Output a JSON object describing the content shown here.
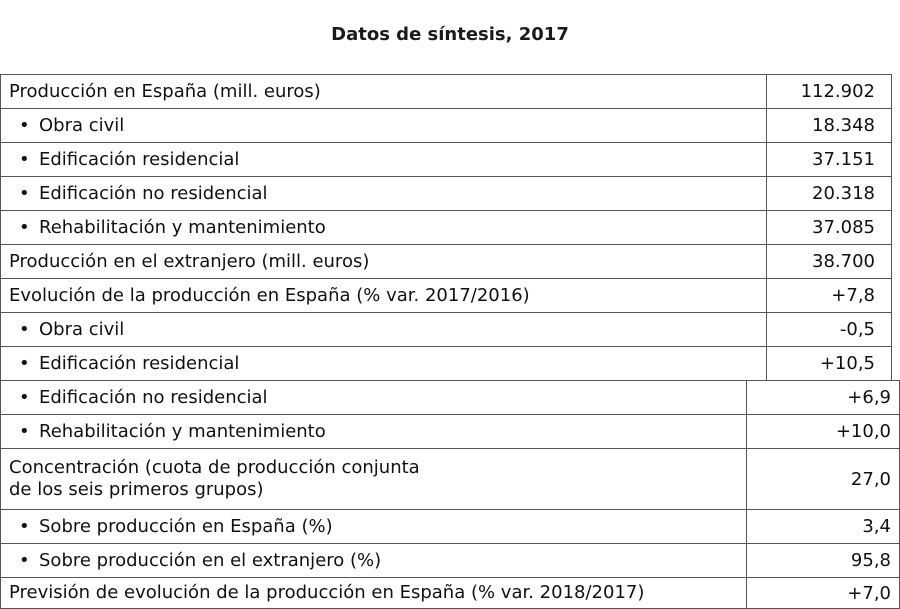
{
  "title": "Datos de síntesis, 2017",
  "rows": [
    {
      "label": "Producción en España (mill. euros)",
      "value": "112.902"
    },
    {
      "label": "Obra civil",
      "value": "18.348"
    },
    {
      "label": "Edificación residencial",
      "value": "37.151"
    },
    {
      "label": "Edificación no residencial",
      "value": "20.318"
    },
    {
      "label": "Rehabilitación y mantenimiento",
      "value": "37.085"
    },
    {
      "label": "Producción en el extranjero (mill. euros)",
      "value": "38.700"
    },
    {
      "label": "Evolución de la producción en España (% var. 2017/2016)",
      "value": "+7,8"
    },
    {
      "label": "Obra civil",
      "value": "-0,5"
    },
    {
      "label": "Edificación residencial",
      "value": "+10,5"
    },
    {
      "label": "Edificación no residencial",
      "value": "+6,9"
    },
    {
      "label": "Rehabilitación y mantenimiento",
      "value": "+10,0"
    },
    {
      "label_line1": "Concentración (cuota de producción conjunta",
      "label_line2": "de los seis primeros grupos)",
      "value": "27,0"
    },
    {
      "label": "Sobre producción en España (%)",
      "value": "3,4"
    },
    {
      "label": "Sobre producción en el extranjero (%)",
      "value": "95,8"
    },
    {
      "label": "Previsión de evolución de la producción en España (% var. 2018/2017)",
      "value": "+7,0"
    }
  ],
  "bullet": "•"
}
